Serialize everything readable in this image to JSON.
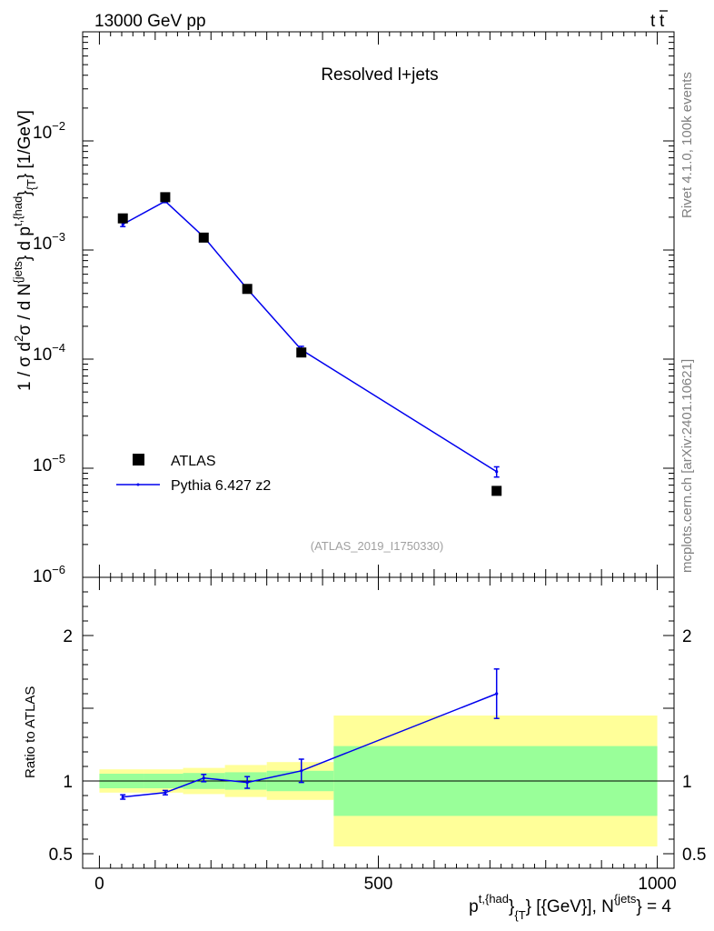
{
  "header": {
    "energy_label": "13000 GeV pp",
    "process_label_main": "t",
    "process_label_bar": "t"
  },
  "side_labels": {
    "rivet": "Rivet 4.1.0,  100k events",
    "mcplots": "mcplots.cern.ch [arXiv:2401.10621]"
  },
  "main_plot": {
    "title": "Resolved l+jets",
    "analysis_id": "(ATLAS_2019_I1750330)",
    "ylabel_parts": {
      "a": "1 / σ d",
      "b": "2",
      "c": "σ / d N",
      "d": "{jets",
      "e": "} d p",
      "f": "t,{had",
      "g": "}",
      "h": "{T",
      "i": "} [1/GeV]"
    },
    "ytick_labels": [
      {
        "mant": "10",
        "exp": "−2"
      },
      {
        "mant": "10",
        "exp": "−3"
      },
      {
        "mant": "10",
        "exp": "−4"
      },
      {
        "mant": "10",
        "exp": "−5"
      },
      {
        "mant": "10",
        "exp": "−6"
      }
    ],
    "legend": {
      "data_label": "ATLAS",
      "mc_label": "Pythia 6.427 z2"
    }
  },
  "ratio_plot": {
    "ylabel": "Ratio to ATLAS",
    "ytick_labels": [
      "2",
      "1",
      "0.5"
    ]
  },
  "x_axis": {
    "tick_labels": [
      "0",
      "500",
      "1000"
    ],
    "label_parts": {
      "a": "p",
      "b": "t,{had",
      "c": "}",
      "d": "{T",
      "e": "} [{GeV}], N",
      "f": "{jets",
      "g": "} = 4"
    }
  },
  "chart_data": {
    "type": "scatter",
    "title": "Resolved l+jets",
    "xlim": [
      -30,
      1030
    ],
    "main_ylim_log10": [
      -6,
      -1
    ],
    "ratio_ylim": [
      0.4,
      2.4
    ],
    "bins": [
      {
        "lo": 0,
        "hi": 80,
        "x": 42,
        "data": 0.00195,
        "mc": 0.00172,
        "mc_err": 8e-05,
        "ratio": 0.89,
        "ratio_err": 0.015,
        "stat": 0.05,
        "tot": 0.08
      },
      {
        "lo": 80,
        "hi": 150,
        "x": 118,
        "data": 0.00305,
        "mc": 0.0028,
        "mc_err": 8e-05,
        "ratio": 0.92,
        "ratio_err": 0.015,
        "stat": 0.05,
        "tot": 0.08
      },
      {
        "lo": 150,
        "hi": 225,
        "x": 187,
        "data": 0.0013,
        "mc": 0.00132,
        "mc_err": 5e-05,
        "ratio": 1.02,
        "ratio_err": 0.025,
        "stat": 0.055,
        "tot": 0.09
      },
      {
        "lo": 225,
        "hi": 300,
        "x": 265,
        "data": 0.00044,
        "mc": 0.00044,
        "mc_err": 2e-05,
        "ratio": 0.99,
        "ratio_err": 0.04,
        "stat": 0.06,
        "tot": 0.11
      },
      {
        "lo": 300,
        "hi": 420,
        "x": 362,
        "data": 0.000115,
        "mc": 0.000122,
        "mc_err": 9e-06,
        "ratio": 1.07,
        "ratio_err": 0.08,
        "stat": 0.07,
        "tot": 0.13
      },
      {
        "lo": 420,
        "hi": 1000,
        "x": 712,
        "data": 6.2e-06,
        "mc": 9.3e-06,
        "mc_err": 1e-06,
        "ratio": 1.6,
        "ratio_err": 0.17,
        "stat": 0.24,
        "tot": 0.45
      }
    ],
    "series": [
      {
        "name": "ATLAS",
        "color": "#000000"
      },
      {
        "name": "Pythia 6.427 z2",
        "color": "#0000ee"
      }
    ],
    "band_colors": {
      "stat": "#99ff99",
      "total": "#ffff99"
    }
  }
}
